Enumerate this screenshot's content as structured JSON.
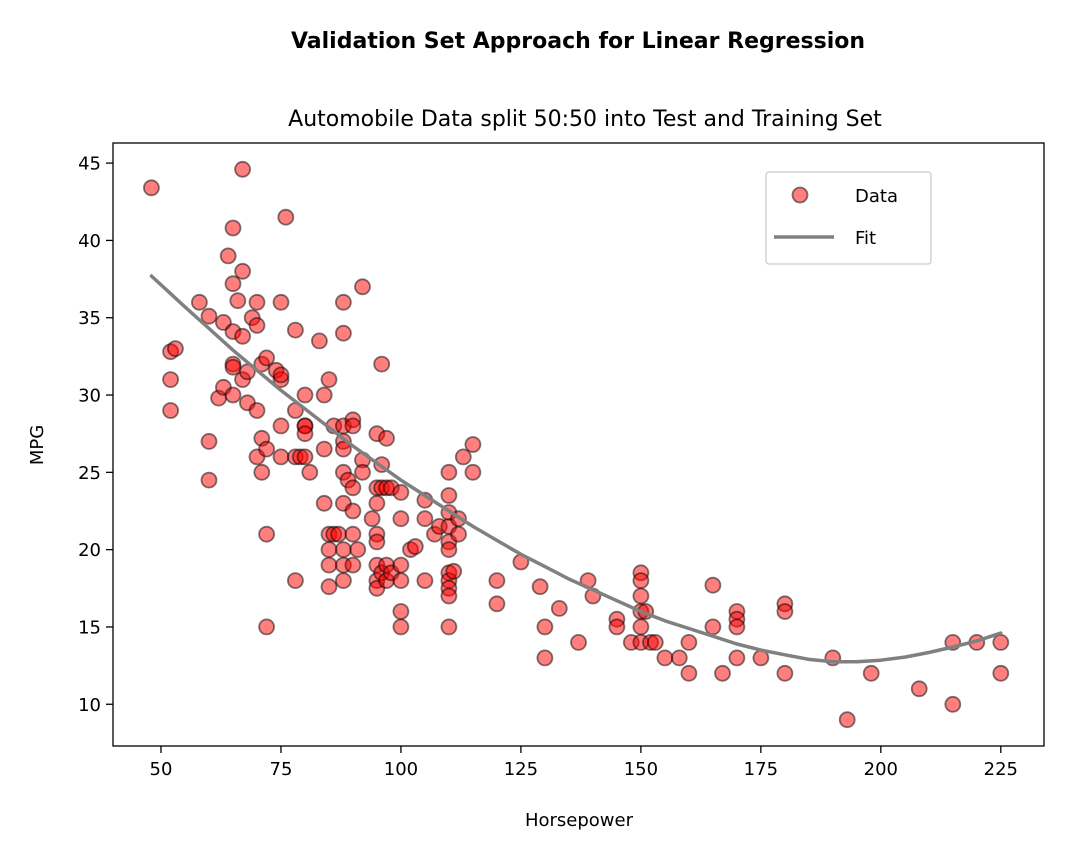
{
  "figure": {
    "suptitle": "Validation Set Approach for Linear Regression"
  },
  "chart_data": {
    "type": "scatter",
    "title": "Automobile Data split 50:50 into Test and Training Set",
    "xlabel": "Horsepower",
    "ylabel": "MPG",
    "xlim": [
      40,
      234
    ],
    "ylim": [
      7.3,
      46.3
    ],
    "xticks": [
      50,
      75,
      100,
      125,
      150,
      175,
      200,
      225
    ],
    "yticks": [
      10,
      15,
      20,
      25,
      30,
      35,
      40,
      45
    ],
    "grid": false,
    "legend": {
      "placement": "upper-right",
      "entries": [
        "Data",
        "Fit"
      ]
    },
    "colors": {
      "data_fill": "#ff0000",
      "data_edge": "#000000",
      "fit_line": "#808080"
    },
    "series": [
      {
        "name": "Data",
        "kind": "scatter",
        "points": [
          [
            48,
            43.4
          ],
          [
            52,
            32.8
          ],
          [
            53,
            33
          ],
          [
            52,
            31
          ],
          [
            52,
            29
          ],
          [
            58,
            36
          ],
          [
            60,
            35.1
          ],
          [
            60,
            27
          ],
          [
            60,
            24.5
          ],
          [
            62,
            29.8
          ],
          [
            63,
            34.7
          ],
          [
            63,
            30.5
          ],
          [
            64,
            39
          ],
          [
            65,
            40.8
          ],
          [
            65,
            37.2
          ],
          [
            65,
            34.1
          ],
          [
            65,
            32
          ],
          [
            65,
            31.8
          ],
          [
            65,
            30
          ],
          [
            66,
            36.1
          ],
          [
            67,
            44.6
          ],
          [
            67,
            38
          ],
          [
            67,
            33.8
          ],
          [
            67,
            31
          ],
          [
            68,
            29.5
          ],
          [
            68,
            31.5
          ],
          [
            69,
            35
          ],
          [
            70,
            36
          ],
          [
            70,
            34.5
          ],
          [
            70,
            29
          ],
          [
            70,
            26
          ],
          [
            71,
            32
          ],
          [
            71,
            27.2
          ],
          [
            71,
            25
          ],
          [
            72,
            32.4
          ],
          [
            72,
            26.5
          ],
          [
            72,
            21
          ],
          [
            72,
            15
          ],
          [
            74,
            31.6
          ],
          [
            75,
            36
          ],
          [
            75,
            31
          ],
          [
            75,
            31.3
          ],
          [
            75,
            28
          ],
          [
            75,
            26
          ],
          [
            76,
            41.5
          ],
          [
            78,
            34.2
          ],
          [
            78,
            29
          ],
          [
            78,
            26
          ],
          [
            78,
            18
          ],
          [
            79,
            26
          ],
          [
            80,
            30
          ],
          [
            80,
            28
          ],
          [
            80,
            28
          ],
          [
            80,
            27.5
          ],
          [
            80,
            26
          ],
          [
            81,
            25
          ],
          [
            83,
            33.5
          ],
          [
            84,
            30
          ],
          [
            84,
            26.5
          ],
          [
            84,
            23
          ],
          [
            85,
            31
          ],
          [
            85,
            21
          ],
          [
            85,
            20
          ],
          [
            85,
            19
          ],
          [
            85,
            17.6
          ],
          [
            86,
            28
          ],
          [
            86,
            21
          ],
          [
            87,
            21
          ],
          [
            88,
            36
          ],
          [
            88,
            34
          ],
          [
            88,
            28
          ],
          [
            88,
            27
          ],
          [
            88,
            26.5
          ],
          [
            88,
            25
          ],
          [
            88,
            23
          ],
          [
            88,
            20
          ],
          [
            88,
            19
          ],
          [
            88,
            18
          ],
          [
            89,
            24.5
          ],
          [
            90,
            28.4
          ],
          [
            90,
            28
          ],
          [
            90,
            24
          ],
          [
            90,
            22.5
          ],
          [
            90,
            21
          ],
          [
            90,
            19
          ],
          [
            91,
            20
          ],
          [
            92,
            37
          ],
          [
            92,
            25.8
          ],
          [
            92,
            25
          ],
          [
            94,
            22
          ],
          [
            95,
            27.5
          ],
          [
            95,
            24
          ],
          [
            95,
            23
          ],
          [
            95,
            21
          ],
          [
            95,
            20.5
          ],
          [
            95,
            19
          ],
          [
            95,
            18
          ],
          [
            95,
            17.5
          ],
          [
            96,
            32
          ],
          [
            96,
            25.5
          ],
          [
            96,
            24
          ],
          [
            96,
            18.5
          ],
          [
            97,
            27.2
          ],
          [
            97,
            24
          ],
          [
            97,
            19
          ],
          [
            97,
            18
          ],
          [
            98,
            24
          ],
          [
            98,
            18.5
          ],
          [
            100,
            23.7
          ],
          [
            100,
            22
          ],
          [
            100,
            19
          ],
          [
            100,
            18
          ],
          [
            100,
            16
          ],
          [
            100,
            15
          ],
          [
            102,
            20
          ],
          [
            103,
            20.2
          ],
          [
            105,
            23.2
          ],
          [
            105,
            22
          ],
          [
            105,
            18
          ],
          [
            107,
            21
          ],
          [
            108,
            21.5
          ],
          [
            110,
            25
          ],
          [
            110,
            23.5
          ],
          [
            110,
            22.4
          ],
          [
            110,
            21.5
          ],
          [
            110,
            20.5
          ],
          [
            110,
            20
          ],
          [
            110,
            18.5
          ],
          [
            110,
            18
          ],
          [
            110,
            17.5
          ],
          [
            110,
            17
          ],
          [
            110,
            15
          ],
          [
            111,
            18.6
          ],
          [
            112,
            22
          ],
          [
            112,
            21
          ],
          [
            113,
            26
          ],
          [
            115,
            26.8
          ],
          [
            115,
            25
          ],
          [
            120,
            18
          ],
          [
            120,
            16.5
          ],
          [
            125,
            19.2
          ],
          [
            129,
            17.6
          ],
          [
            130,
            15
          ],
          [
            130,
            13
          ],
          [
            133,
            16.2
          ],
          [
            137,
            14
          ],
          [
            139,
            18
          ],
          [
            140,
            17
          ],
          [
            145,
            15.5
          ],
          [
            145,
            15
          ],
          [
            148,
            14
          ],
          [
            150,
            18.5
          ],
          [
            150,
            18
          ],
          [
            150,
            17
          ],
          [
            150,
            16
          ],
          [
            150,
            15
          ],
          [
            150,
            14
          ],
          [
            151,
            16
          ],
          [
            152,
            14
          ],
          [
            153,
            14
          ],
          [
            155,
            13
          ],
          [
            158,
            13
          ],
          [
            160,
            14
          ],
          [
            160,
            12
          ],
          [
            165,
            17.7
          ],
          [
            165,
            15
          ],
          [
            167,
            12
          ],
          [
            170,
            16
          ],
          [
            170,
            15.5
          ],
          [
            170,
            15
          ],
          [
            170,
            13
          ],
          [
            175,
            13
          ],
          [
            180,
            16.5
          ],
          [
            180,
            16
          ],
          [
            180,
            12
          ],
          [
            190,
            13
          ],
          [
            193,
            9
          ],
          [
            198,
            12
          ],
          [
            208,
            11
          ],
          [
            215,
            14
          ],
          [
            215,
            10
          ],
          [
            220,
            14
          ],
          [
            225,
            14
          ],
          [
            225,
            12
          ]
        ]
      },
      {
        "name": "Fit",
        "kind": "line",
        "x": [
          48,
          55,
          60,
          65,
          70,
          75,
          80,
          85,
          90,
          95,
          100,
          105,
          110,
          115,
          120,
          125,
          130,
          135,
          140,
          145,
          150,
          155,
          160,
          165,
          170,
          175,
          180,
          185,
          190,
          195,
          200,
          205,
          210,
          215,
          220,
          225
        ],
        "y": [
          37.7,
          35.7,
          34.3,
          32.9,
          31.6,
          30.3,
          29.1,
          27.9,
          26.7,
          25.6,
          24.5,
          23.5,
          22.5,
          21.5,
          20.6,
          19.7,
          18.9,
          18.1,
          17.4,
          16.7,
          16.0,
          15.4,
          14.9,
          14.4,
          13.9,
          13.5,
          13.2,
          12.9,
          12.75,
          12.75,
          12.85,
          13.05,
          13.35,
          13.7,
          14.1,
          14.6
        ]
      }
    ]
  }
}
